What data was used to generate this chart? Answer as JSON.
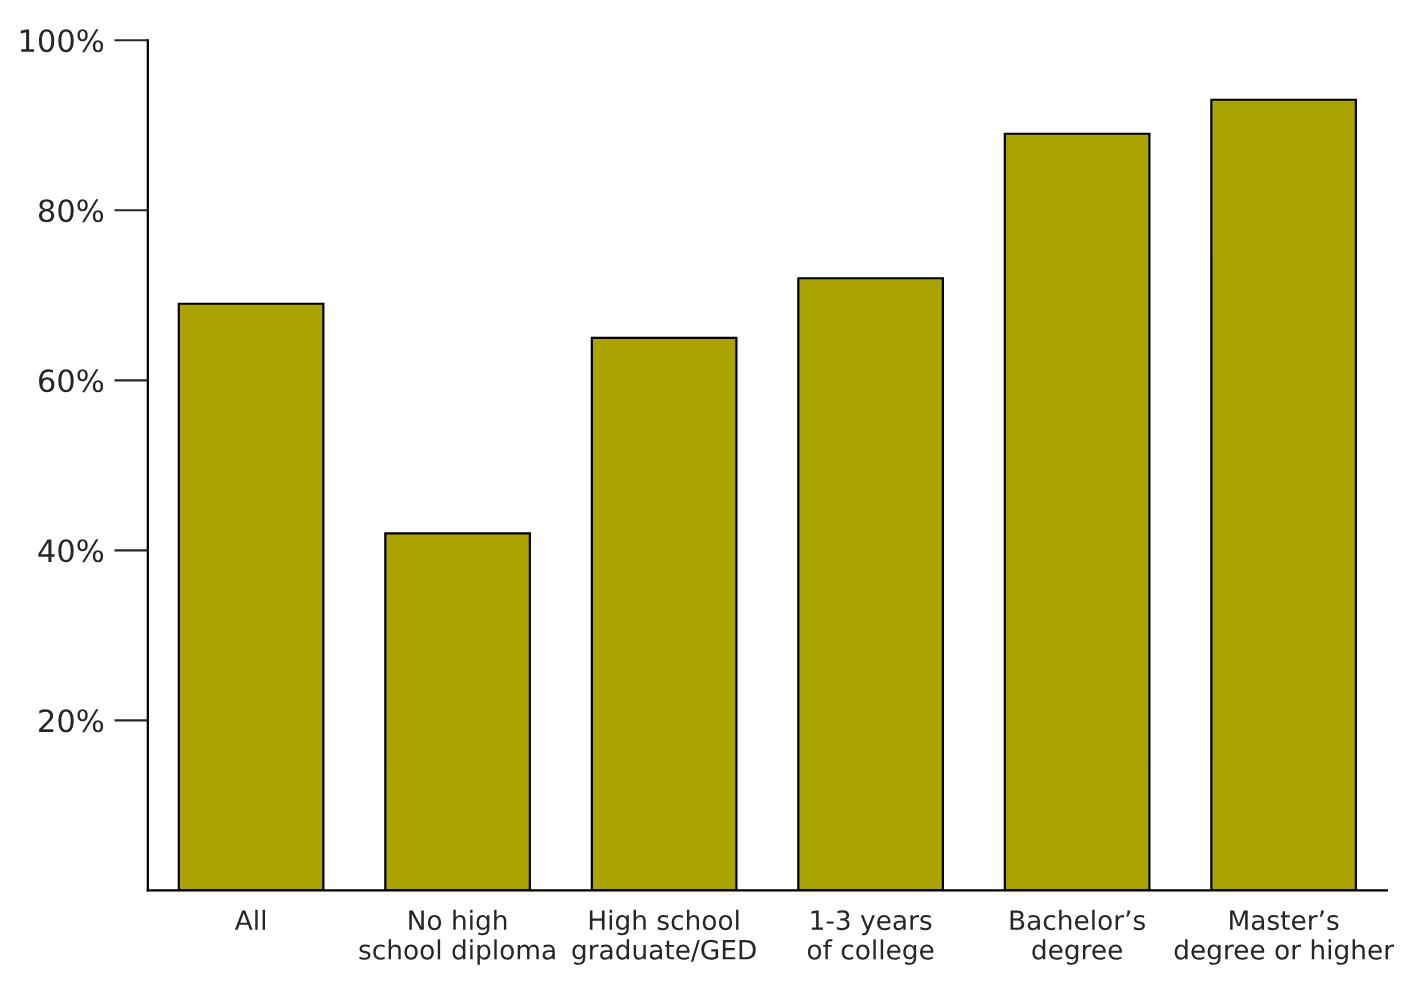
{
  "chart_data": {
    "type": "bar",
    "categories": [
      "All",
      "No high\nschool diploma",
      "High school\ngraduate/GED",
      "1-3 years\nof college",
      "Bachelor’s\ndegree",
      "Master’s\ndegree or higher"
    ],
    "values": [
      69,
      42,
      65,
      72,
      89,
      93
    ],
    "color": "#aba300",
    "ylim": [
      0,
      100
    ],
    "yticks": [
      {
        "value": 20,
        "label": "20%"
      },
      {
        "value": 40,
        "label": "40%"
      },
      {
        "value": 60,
        "label": "60%"
      },
      {
        "value": 80,
        "label": "80%"
      },
      {
        "value": 100,
        "label": "100%"
      }
    ],
    "grid": false,
    "legend": false
  }
}
